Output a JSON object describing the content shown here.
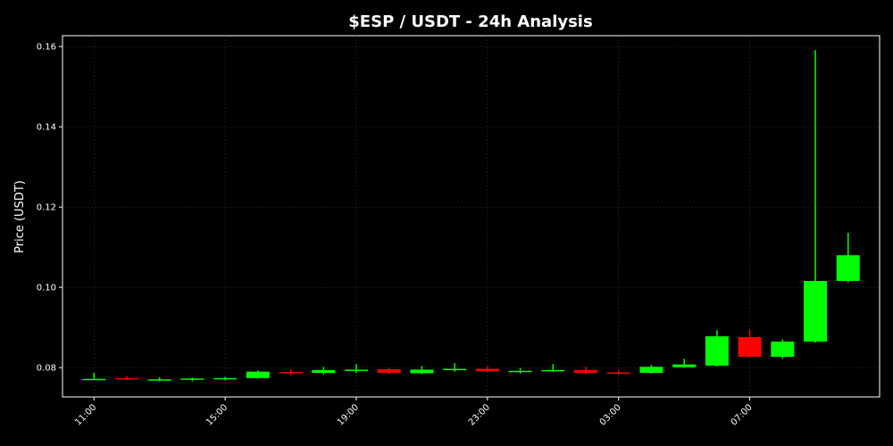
{
  "chart_data": {
    "type": "candlestick",
    "title": "$ESP / USDT - 24h Analysis",
    "y_label": "Price (USDT)",
    "categories": [
      "11:00",
      null,
      null,
      null,
      "15:00",
      null,
      null,
      null,
      "19:00",
      null,
      null,
      null,
      "23:00",
      null,
      null,
      null,
      "03:00",
      null,
      null,
      null,
      "07:00",
      null,
      null,
      null
    ],
    "open": [
      0.0771,
      0.0774,
      0.0769,
      0.077,
      0.0772,
      0.0774,
      0.0789,
      0.0787,
      0.0792,
      0.0796,
      0.0786,
      0.0794,
      0.0797,
      0.079,
      0.0791,
      0.0794,
      0.0788,
      0.0787,
      0.0801,
      0.0805,
      0.0876,
      0.0827,
      0.0865,
      0.1016
    ],
    "high": [
      0.0787,
      0.0779,
      0.0776,
      0.0775,
      0.0777,
      0.0793,
      0.0796,
      0.0802,
      0.0809,
      0.0799,
      0.0804,
      0.0811,
      0.0803,
      0.0799,
      0.0809,
      0.0802,
      0.0794,
      0.0807,
      0.0822,
      0.0893,
      0.0895,
      0.087,
      0.1591,
      0.1136
    ],
    "low": [
      0.077,
      0.0769,
      0.0766,
      0.0766,
      0.0768,
      0.0773,
      0.0781,
      0.0783,
      0.0786,
      0.0785,
      0.0784,
      0.079,
      0.0788,
      0.0785,
      0.0789,
      0.0784,
      0.0783,
      0.0785,
      0.08,
      0.0803,
      0.0826,
      0.0822,
      0.0862,
      0.1012
    ],
    "close": [
      0.0772,
      0.0771,
      0.0771,
      0.0773,
      0.0774,
      0.079,
      0.0787,
      0.0794,
      0.0795,
      0.0787,
      0.0795,
      0.0797,
      0.0791,
      0.0792,
      0.0794,
      0.0787,
      0.0786,
      0.0802,
      0.0808,
      0.0878,
      0.0827,
      0.0865,
      0.1016,
      0.108
    ],
    "up_color": "#00ff00",
    "down_color": "#ff0000",
    "ylim": [
      0.0727,
      0.1627
    ],
    "yticks": [
      0.08,
      {
        "value": 0.1,
        "label": "0.10"
      },
      0.12,
      0.14,
      0.16
    ],
    "grid": true
  }
}
